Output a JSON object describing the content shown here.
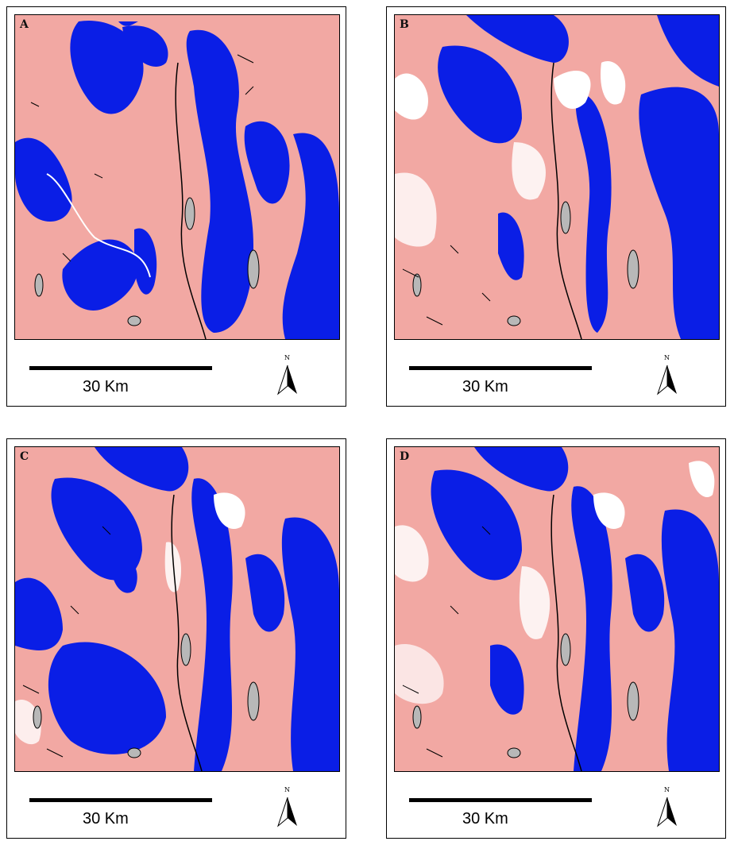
{
  "panels": [
    {
      "letter": "A",
      "scale_label": "30 Km",
      "north_label": "N"
    },
    {
      "letter": "B",
      "scale_label": "30 Km",
      "north_label": "N"
    },
    {
      "letter": "C",
      "scale_label": "30 Km",
      "north_label": "N"
    },
    {
      "letter": "D",
      "scale_label": "30 Km",
      "north_label": "N"
    }
  ],
  "colors": {
    "background_class": "#f2a8a3",
    "water_class": "#0a1ee6",
    "unclassified": "#ffffff",
    "lakes": "#b8b8b8",
    "boundaries": "#000000"
  }
}
